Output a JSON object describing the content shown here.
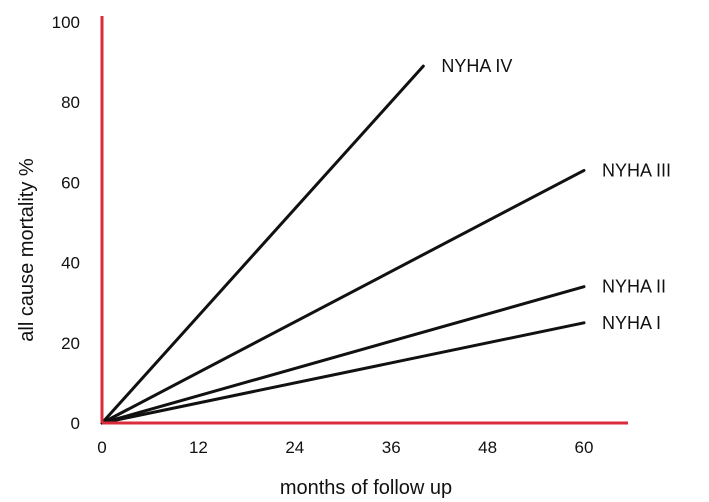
{
  "chart_data": {
    "type": "line",
    "xlabel": "months of follow up",
    "ylabel": "all cause mortality %",
    "xlim": [
      0,
      64
    ],
    "ylim": [
      0,
      100
    ],
    "x_ticks": [
      0,
      12,
      24,
      36,
      48,
      60
    ],
    "y_ticks": [
      0,
      20,
      40,
      60,
      80,
      100
    ],
    "grid": false,
    "legend": "labels at line ends",
    "series": [
      {
        "name": "NYHA IV",
        "x": [
          0,
          40
        ],
        "y": [
          0,
          89
        ]
      },
      {
        "name": "NYHA III",
        "x": [
          0,
          60
        ],
        "y": [
          0,
          63
        ]
      },
      {
        "name": "NYHA II",
        "x": [
          0,
          60
        ],
        "y": [
          0,
          34
        ]
      },
      {
        "name": "NYHA I",
        "x": [
          0,
          60
        ],
        "y": [
          0,
          25
        ]
      }
    ],
    "colors": {
      "axes": "#d92b3a",
      "lines": "#111111"
    }
  }
}
